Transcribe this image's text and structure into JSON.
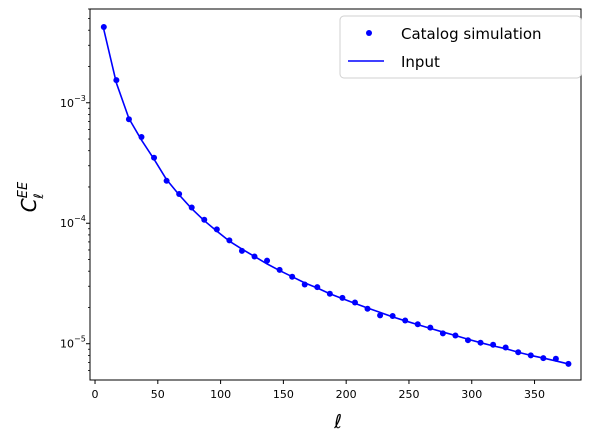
{
  "chart_data": {
    "type": "scatter",
    "title": "",
    "xlabel": "ℓ",
    "ylabel": {
      "base": "C",
      "sup": "EE",
      "sub": "ℓ"
    },
    "xscale": "linear",
    "yscale": "log",
    "xlim": [
      -4,
      387
    ],
    "ylim": [
      5e-06,
      0.006
    ],
    "x_ticks": [
      {
        "value": 0,
        "label": "0"
      },
      {
        "value": 50,
        "label": "50"
      },
      {
        "value": 100,
        "label": "100"
      },
      {
        "value": 150,
        "label": "150"
      },
      {
        "value": 200,
        "label": "200"
      },
      {
        "value": 250,
        "label": "250"
      },
      {
        "value": 300,
        "label": "300"
      },
      {
        "value": 350,
        "label": "350"
      }
    ],
    "y_ticks": [
      {
        "value": 1e-05,
        "base": "10",
        "exp": "−5"
      },
      {
        "value": 0.0001,
        "base": "10",
        "exp": "−4"
      },
      {
        "value": 0.001,
        "base": "10",
        "exp": "−3"
      }
    ],
    "grid": false,
    "legend_position": "top-right",
    "series": [
      {
        "name": "Catalog simulation",
        "style": "points",
        "color": "#0000ff",
        "x": [
          7,
          17,
          27,
          37,
          47,
          57,
          67,
          77,
          87,
          97,
          107,
          117,
          127,
          137,
          147,
          157,
          167,
          177,
          187,
          197,
          207,
          217,
          227,
          237,
          247,
          257,
          267,
          277,
          287,
          297,
          307,
          317,
          327,
          337,
          347,
          357,
          367,
          377
        ],
        "y": [
          0.00425,
          0.00154,
          0.00073,
          0.00052,
          0.00035,
          0.000225,
          0.000175,
          0.000135,
          0.000107,
          8.9e-05,
          7.2e-05,
          5.9e-05,
          5.3e-05,
          4.9e-05,
          4.1e-05,
          3.6e-05,
          3.1e-05,
          2.95e-05,
          2.6e-05,
          2.4e-05,
          2.2e-05,
          1.95e-05,
          1.72e-05,
          1.7e-05,
          1.56e-05,
          1.45e-05,
          1.36e-05,
          1.22e-05,
          1.17e-05,
          1.07e-05,
          1.02e-05,
          9.8e-06,
          9.3e-06,
          8.5e-06,
          8e-06,
          7.6e-06,
          7.5e-06,
          6.8e-06
        ]
      },
      {
        "name": "Input",
        "style": "line",
        "color": "#0000ff",
        "x": [
          7,
          17,
          27,
          37,
          47,
          57,
          67,
          77,
          87,
          97,
          107,
          117,
          127,
          137,
          147,
          157,
          167,
          177,
          187,
          197,
          207,
          217,
          227,
          237,
          247,
          257,
          267,
          277,
          287,
          297,
          307,
          317,
          327,
          337,
          347,
          357,
          367,
          377
        ],
        "y": [
          0.00405,
          0.00146,
          0.00074,
          0.00049,
          0.00034,
          0.00023,
          0.000172,
          0.000132,
          0.000105,
          8.6e-05,
          7.1e-05,
          6.1e-05,
          5.3e-05,
          4.6e-05,
          4.05e-05,
          3.6e-05,
          3.2e-05,
          2.9e-05,
          2.6e-05,
          2.37e-05,
          2.16e-05,
          1.98e-05,
          1.82e-05,
          1.67e-05,
          1.55e-05,
          1.44e-05,
          1.34e-05,
          1.25e-05,
          1.17e-05,
          1.09e-05,
          1.02e-05,
          9.6e-06,
          9.1e-06,
          8.5e-06,
          8e-06,
          7.6e-06,
          7.2e-06,
          6.8e-06
        ]
      }
    ]
  }
}
